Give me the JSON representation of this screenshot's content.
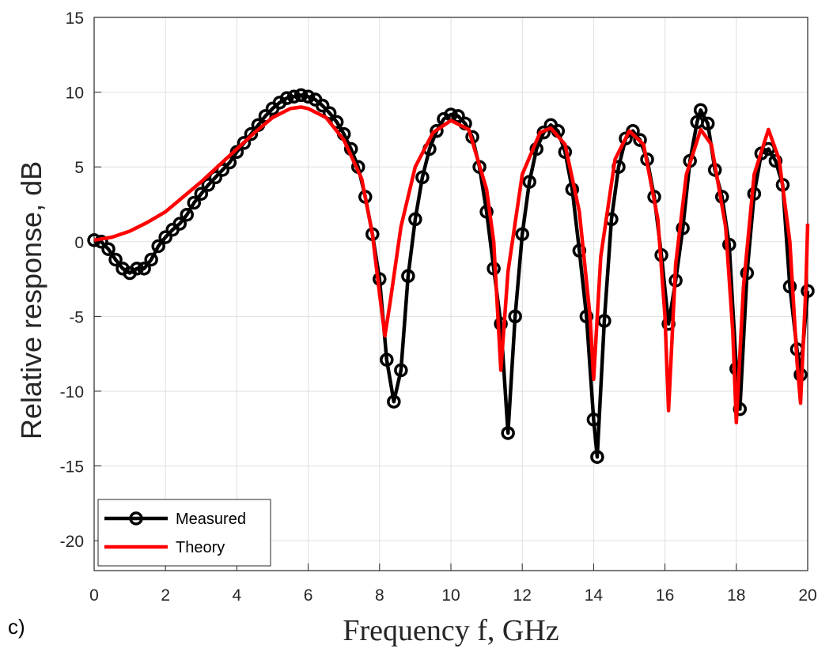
{
  "chart_data": {
    "type": "line",
    "xlabel": "Frequency f, GHz",
    "ylabel": "Relative response, dB",
    "annotation": "c)",
    "xlim": [
      0,
      20
    ],
    "ylim": [
      -22,
      15
    ],
    "xticks": [
      0,
      2,
      4,
      6,
      8,
      10,
      12,
      14,
      16,
      18,
      20
    ],
    "yticks": [
      -20,
      -15,
      -10,
      -5,
      0,
      5,
      10,
      15
    ],
    "grid": true,
    "legend": "southwest",
    "series": [
      {
        "name": "Measured",
        "color": "#000000",
        "marker": "circle",
        "x": [
          0,
          0.2,
          0.4,
          0.6,
          0.8,
          1.0,
          1.2,
          1.4,
          1.6,
          1.8,
          2.0,
          2.2,
          2.4,
          2.6,
          2.8,
          3.0,
          3.2,
          3.4,
          3.6,
          3.8,
          4.0,
          4.2,
          4.4,
          4.6,
          4.8,
          5.0,
          5.2,
          5.4,
          5.6,
          5.8,
          6.0,
          6.2,
          6.4,
          6.6,
          6.8,
          7.0,
          7.2,
          7.4,
          7.6,
          7.8,
          8.0,
          8.2,
          8.4,
          8.6,
          8.8,
          9.0,
          9.2,
          9.4,
          9.6,
          9.8,
          10.0,
          10.2,
          10.4,
          10.6,
          10.8,
          11.0,
          11.2,
          11.4,
          11.6,
          11.8,
          12.0,
          12.2,
          12.4,
          12.6,
          12.8,
          13.0,
          13.2,
          13.4,
          13.6,
          13.8,
          14.0,
          14.1,
          14.3,
          14.5,
          14.7,
          14.9,
          15.1,
          15.3,
          15.5,
          15.7,
          15.9,
          16.1,
          16.3,
          16.5,
          16.7,
          16.9,
          17.0,
          17.2,
          17.4,
          17.6,
          17.8,
          18.0,
          18.1,
          18.3,
          18.5,
          18.7,
          18.9,
          19.1,
          19.3,
          19.5,
          19.7,
          19.8,
          20.0
        ],
        "values": [
          0.1,
          0,
          -0.5,
          -1.2,
          -1.8,
          -2.1,
          -1.8,
          -1.8,
          -1.2,
          -0.3,
          0.3,
          0.8,
          1.2,
          1.8,
          2.6,
          3.2,
          3.8,
          4.3,
          4.8,
          5.3,
          6.0,
          6.6,
          7.2,
          7.8,
          8.4,
          8.9,
          9.3,
          9.6,
          9.7,
          9.8,
          9.7,
          9.5,
          9.1,
          8.6,
          8.0,
          7.2,
          6.2,
          5.0,
          3.0,
          0.5,
          -2.5,
          -7.9,
          -10.7,
          -8.6,
          -2.3,
          1.5,
          4.3,
          6.2,
          7.4,
          8.2,
          8.5,
          8.4,
          7.9,
          7.0,
          5.0,
          2.0,
          -1.8,
          -5.5,
          -12.8,
          -5.0,
          0.5,
          4.0,
          6.2,
          7.3,
          7.8,
          7.4,
          6.0,
          3.5,
          -0.6,
          -5.0,
          -11.9,
          -14.4,
          -5.3,
          1.5,
          5.0,
          6.9,
          7.4,
          6.8,
          5.5,
          3.0,
          -0.9,
          -5.5,
          -2.6,
          0.9,
          5.4,
          8.0,
          8.8,
          7.9,
          4.8,
          3.0,
          -0.2,
          -8.5,
          -11.2,
          -2.1,
          3.2,
          5.9,
          6.2,
          5.4,
          3.8,
          -3.0,
          -7.2,
          -8.9,
          -3.3
        ]
      },
      {
        "name": "Theory",
        "color": "#ff0000",
        "x": [
          0,
          0.5,
          1,
          1.5,
          2,
          2.5,
          3,
          3.5,
          4,
          4.5,
          5,
          5.5,
          5.8,
          6,
          6.5,
          7,
          7.5,
          7.8,
          8.0,
          8.15,
          8.3,
          8.6,
          9,
          9.5,
          10,
          10.5,
          11,
          11.2,
          11.4,
          11.6,
          12,
          12.5,
          12.8,
          13.2,
          13.6,
          13.9,
          14.0,
          14.2,
          14.6,
          15,
          15.4,
          15.8,
          16.0,
          16.1,
          16.3,
          16.6,
          17.0,
          17.3,
          17.7,
          17.9,
          18.0,
          18.2,
          18.5,
          18.9,
          19.2,
          19.5,
          19.7,
          19.8,
          19.95,
          20
        ],
        "values": [
          0.1,
          0.3,
          0.7,
          1.3,
          2.0,
          3.0,
          4.0,
          5.1,
          6.2,
          7.3,
          8.3,
          8.9,
          9.0,
          8.9,
          8.3,
          6.8,
          4.2,
          0.5,
          -3.5,
          -6.3,
          -4.0,
          1.0,
          5.0,
          7.3,
          8.1,
          7.5,
          3.5,
          0,
          -8.6,
          -2.0,
          4.5,
          7.3,
          7.6,
          6.5,
          2.0,
          -5,
          -9.2,
          -1,
          5.5,
          7.4,
          6.5,
          1.5,
          -5,
          -11.3,
          -1.5,
          4.5,
          7.5,
          6.5,
          1,
          -6,
          -12.1,
          -3,
          4.5,
          7.5,
          5.5,
          0,
          -8,
          -10.8,
          -3,
          1.2
        ]
      }
    ]
  }
}
